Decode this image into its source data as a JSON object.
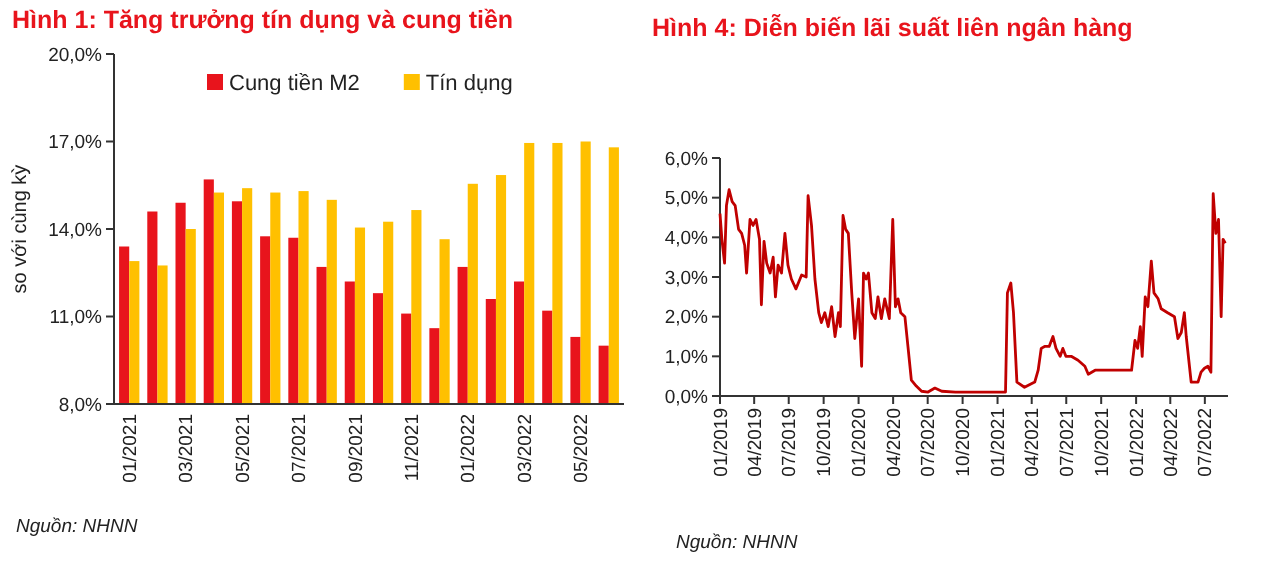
{
  "chart_data": [
    {
      "type": "bar",
      "title": "Hình 1: Tăng trưởng tín dụng và cung tiền",
      "ylabel": "so với cùng kỳ",
      "categories": [
        "01/2021",
        null,
        "03/2021",
        null,
        "05/2021",
        null,
        "07/2021",
        null,
        "09/2021",
        null,
        "11/2021",
        null,
        "01/2022",
        null,
        "03/2022",
        null,
        "05/2022",
        null
      ],
      "series": [
        {
          "name": "Cung tiền M2",
          "color": "#e8141c",
          "values": [
            13.4,
            14.6,
            14.9,
            15.7,
            14.95,
            13.75,
            13.7,
            12.7,
            12.2,
            11.8,
            11.1,
            10.6,
            12.7,
            11.6,
            12.2,
            11.2,
            10.3,
            10.0
          ]
        },
        {
          "name": "Tín dụng",
          "color": "#ffc000",
          "values": [
            12.9,
            12.75,
            14.0,
            15.25,
            15.4,
            15.25,
            15.3,
            15.0,
            14.05,
            14.25,
            14.65,
            13.65,
            15.55,
            15.85,
            16.95,
            16.95,
            17.0,
            16.8
          ]
        }
      ],
      "ylim": [
        8,
        20
      ],
      "yticks": [
        {
          "value": 8,
          "label": "8,0%"
        },
        {
          "value": 11,
          "label": "11,0%"
        },
        {
          "value": 14,
          "label": "14,0%"
        },
        {
          "value": 17,
          "label": "17,0%"
        },
        {
          "value": 20,
          "label": "20,0%"
        }
      ],
      "legend": "top",
      "grid": false,
      "annotations": [
        "Nguồn: NHNN"
      ]
    },
    {
      "type": "line",
      "title": "Hình 4: Diễn biến lãi suất liên ngân hàng",
      "line_style": "solid",
      "marker": "none",
      "grid": false,
      "legend": false,
      "series": [
        {
          "color": "#c00000",
          "x": [
            "2019-01-01",
            "2019-01-06",
            "2019-01-13",
            "2019-01-18",
            "2019-01-25",
            "2019-02-02",
            "2019-02-10",
            "2019-02-19",
            "2019-02-27",
            "2019-03-07",
            "2019-03-12",
            "2019-03-21",
            "2019-03-29",
            "2019-04-06",
            "2019-04-15",
            "2019-04-20",
            "2019-04-27",
            "2019-05-04",
            "2019-05-13",
            "2019-05-21",
            "2019-05-27",
            "2019-06-03",
            "2019-06-12",
            "2019-06-21",
            "2019-06-29",
            "2019-07-08",
            "2019-07-20",
            "2019-08-04",
            "2019-08-16",
            "2019-08-21",
            "2019-08-30",
            "2019-09-08",
            "2019-09-18",
            "2019-09-25",
            "2019-10-04",
            "2019-10-13",
            "2019-10-22",
            "2019-10-31",
            "2019-11-09",
            "2019-11-14",
            "2019-11-21",
            "2019-11-28",
            "2019-12-05",
            "2019-12-14",
            "2019-12-22",
            "2020-01-01",
            "2020-01-09",
            "2020-01-14",
            "2020-01-21",
            "2020-01-27",
            "2020-02-05",
            "2020-02-14",
            "2020-02-21",
            "2020-03-01",
            "2020-03-10",
            "2020-03-22",
            "2020-03-31",
            "2020-04-07",
            "2020-04-14",
            "2020-04-21",
            "2020-05-02",
            "2020-05-10",
            "2020-05-19",
            "2020-06-01",
            "2020-06-15",
            "2020-07-02",
            "2020-07-20",
            "2020-08-07",
            "2020-09-12",
            "2020-11-04",
            "2021-01-13",
            "2021-01-22",
            "2021-01-27",
            "2021-02-05",
            "2021-02-12",
            "2021-02-21",
            "2021-03-13",
            "2021-04-09",
            "2021-04-18",
            "2021-04-26",
            "2021-05-05",
            "2021-05-17",
            "2021-05-27",
            "2021-06-04",
            "2021-06-15",
            "2021-06-22",
            "2021-06-30",
            "2021-07-14",
            "2021-08-01",
            "2021-08-19",
            "2021-08-28",
            "2021-09-15",
            "2021-10-19",
            "2021-11-24",
            "2021-12-20",
            "2021-12-29",
            "2022-01-05",
            "2022-01-12",
            "2022-01-17",
            "2022-01-25",
            "2022-02-01",
            "2022-02-10",
            "2022-02-17",
            "2022-02-28",
            "2022-03-08",
            "2022-03-25",
            "2022-04-12",
            "2022-04-21",
            "2022-04-30",
            "2022-05-08",
            "2022-05-13",
            "2022-05-26",
            "2022-06-13",
            "2022-06-21",
            "2022-06-30",
            "2022-07-09",
            "2022-07-17",
            "2022-07-23",
            "2022-07-30",
            "2022-08-06",
            "2022-08-13",
            "2022-08-18",
            "2022-08-24"
          ],
          "values": [
            4.6,
            3.95,
            3.35,
            4.8,
            5.2,
            4.9,
            4.8,
            4.2,
            4.1,
            3.8,
            3.1,
            4.45,
            4.3,
            4.45,
            3.95,
            2.3,
            3.9,
            3.35,
            3.1,
            3.5,
            2.5,
            3.3,
            3.1,
            4.1,
            3.3,
            2.95,
            2.7,
            3.05,
            3.0,
            5.05,
            4.3,
            2.95,
            2.1,
            1.85,
            2.1,
            1.75,
            2.25,
            1.5,
            2.1,
            1.75,
            4.55,
            4.2,
            4.1,
            2.6,
            1.45,
            2.45,
            0.75,
            3.1,
            2.95,
            3.1,
            2.1,
            1.95,
            2.5,
            1.95,
            2.45,
            1.95,
            4.45,
            2.25,
            2.45,
            2.1,
            2.0,
            1.25,
            0.4,
            0.25,
            0.12,
            0.1,
            0.2,
            0.12,
            0.1,
            0.1,
            0.1,
            0.1,
            2.6,
            2.85,
            2.1,
            0.35,
            0.22,
            0.35,
            0.65,
            1.2,
            1.25,
            1.25,
            1.5,
            1.2,
            1.0,
            1.2,
            1.0,
            1.0,
            0.9,
            0.75,
            0.55,
            0.65,
            0.65,
            0.65,
            0.65,
            1.4,
            1.2,
            1.75,
            1.0,
            2.5,
            2.25,
            3.4,
            2.6,
            2.45,
            2.2,
            2.1,
            2.0,
            1.45,
            1.6,
            2.1,
            1.5,
            0.35,
            0.35,
            0.6,
            0.7,
            0.75,
            0.6,
            5.1,
            4.1,
            4.45,
            2.0,
            3.95,
            3.85
          ]
        }
      ],
      "xlim": [
        "2019-01-01",
        "2022-08-31"
      ],
      "xticks": [
        {
          "value": "2019-01",
          "label": "01/2019"
        },
        {
          "value": "2019-04",
          "label": "04/2019"
        },
        {
          "value": "2019-07",
          "label": "07/2019"
        },
        {
          "value": "2019-10",
          "label": "10/2019"
        },
        {
          "value": "2020-01",
          "label": "01/2020"
        },
        {
          "value": "2020-04",
          "label": "04/2020"
        },
        {
          "value": "2020-07",
          "label": "07/2020"
        },
        {
          "value": "2020-10",
          "label": "10/2020"
        },
        {
          "value": "2021-01",
          "label": "01/2021"
        },
        {
          "value": "2021-04",
          "label": "04/2021"
        },
        {
          "value": "2021-07",
          "label": "07/2021"
        },
        {
          "value": "2021-10",
          "label": "10/2021"
        },
        {
          "value": "2022-01",
          "label": "01/2022"
        },
        {
          "value": "2022-04",
          "label": "04/2022"
        },
        {
          "value": "2022-07",
          "label": "07/2022"
        }
      ],
      "ylim": [
        0,
        6
      ],
      "yticks": [
        {
          "value": 0,
          "label": "0,0%"
        },
        {
          "value": 1,
          "label": "1,0%"
        },
        {
          "value": 2,
          "label": "2,0%"
        },
        {
          "value": 3,
          "label": "3,0%"
        },
        {
          "value": 4,
          "label": "4,0%"
        },
        {
          "value": 5,
          "label": "5,0%"
        },
        {
          "value": 6,
          "label": "6,0%"
        }
      ],
      "annotations": [
        "Nguồn: NHNN"
      ]
    }
  ]
}
